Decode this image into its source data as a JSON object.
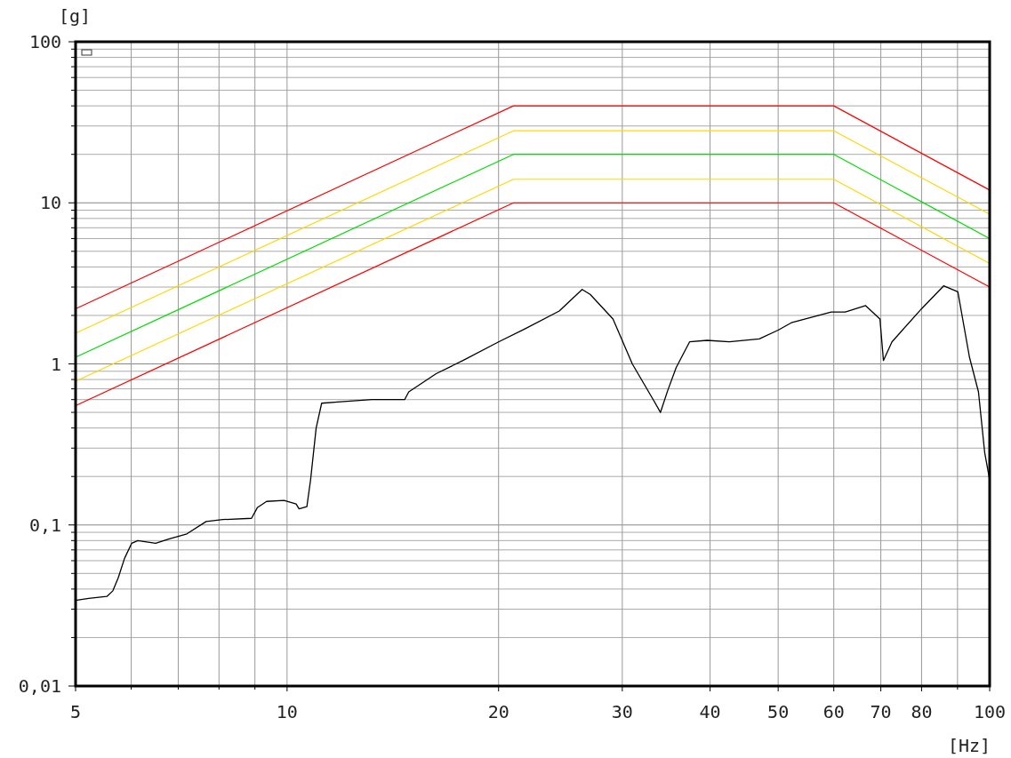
{
  "chart_data": {
    "type": "line",
    "xlabel": "[Hz]",
    "ylabel": "[g]",
    "log": "xy",
    "grid": true,
    "line_style": "solid",
    "xlim": [
      5,
      100
    ],
    "ylim": [
      0.01,
      100
    ],
    "xticks": [
      5,
      {
        "value": 6,
        "label": null
      },
      {
        "value": 7,
        "label": null
      },
      {
        "value": 8,
        "label": null
      },
      {
        "value": 9,
        "label": null
      },
      10,
      20,
      30,
      40,
      50,
      60,
      70,
      80,
      {
        "value": 90,
        "label": null
      },
      100
    ],
    "yticks": [
      {
        "value": 0.01,
        "label": "0,01"
      },
      {
        "value": 0.02,
        "label": null
      },
      {
        "value": 0.03,
        "label": null
      },
      {
        "value": 0.04,
        "label": null
      },
      {
        "value": 0.05,
        "label": null
      },
      {
        "value": 0.06,
        "label": null
      },
      {
        "value": 0.07,
        "label": null
      },
      {
        "value": 0.08,
        "label": null
      },
      {
        "value": 0.09,
        "label": null
      },
      {
        "value": 0.1,
        "label": "0,1"
      },
      {
        "value": 0.2,
        "label": null
      },
      {
        "value": 0.3,
        "label": null
      },
      {
        "value": 0.4,
        "label": null
      },
      {
        "value": 0.5,
        "label": null
      },
      {
        "value": 0.6,
        "label": null
      },
      {
        "value": 0.7,
        "label": null
      },
      {
        "value": 0.8,
        "label": null
      },
      {
        "value": 0.9,
        "label": null
      },
      1,
      {
        "value": 2,
        "label": null
      },
      {
        "value": 3,
        "label": null
      },
      {
        "value": 4,
        "label": null
      },
      {
        "value": 5,
        "label": null
      },
      {
        "value": 6,
        "label": null
      },
      {
        "value": 7,
        "label": null
      },
      {
        "value": 8,
        "label": null
      },
      {
        "value": 9,
        "label": null
      },
      10,
      {
        "value": 20,
        "label": null
      },
      {
        "value": 30,
        "label": null
      },
      {
        "value": 40,
        "label": null
      },
      {
        "value": 50,
        "label": null
      },
      {
        "value": 60,
        "label": null
      },
      {
        "value": 70,
        "label": null
      },
      {
        "value": 80,
        "label": null
      },
      {
        "value": 90,
        "label": null
      },
      100
    ],
    "series": [
      {
        "color": "#ff0000",
        "x": [
          5,
          21,
          60,
          100
        ],
        "values": [
          2.2,
          40,
          40,
          12
        ]
      },
      {
        "color": "#ffd700",
        "x": [
          5,
          21,
          60,
          100
        ],
        "values": [
          1.55,
          28,
          28,
          8.5
        ]
      },
      {
        "color": "#00dd00",
        "x": [
          5,
          21,
          60,
          100
        ],
        "values": [
          1.1,
          20,
          20,
          6
        ]
      },
      {
        "color": "#ffd700",
        "x": [
          5,
          21,
          60,
          100
        ],
        "values": [
          0.78,
          14,
          14,
          4.2
        ]
      },
      {
        "color": "#ff0000",
        "x": [
          5,
          21,
          60,
          100
        ],
        "values": [
          0.55,
          10,
          10,
          3
        ]
      },
      {
        "color": "#000000",
        "x": [
          5,
          5.22,
          5.54,
          5.65,
          5.75,
          5.87,
          6.01,
          6.13,
          6.5,
          6.8,
          7.2,
          7.67,
          8.1,
          8.9,
          9.07,
          9.35,
          9.9,
          10.3,
          10.4,
          10.67,
          10.8,
          11,
          11.2,
          11.8,
          13.2,
          14.7,
          14.9,
          16.3,
          17.8,
          20,
          21.8,
          24.4,
          26.3,
          27,
          29.1,
          31,
          33.2,
          34,
          34.8,
          35.8,
          37.4,
          39.6,
          42.6,
          47,
          50,
          52.2,
          59.5,
          62.3,
          66.6,
          69.8,
          70.6,
          72.6,
          80,
          86,
          90.1,
          93.6,
          96.4,
          98.4,
          100
        ],
        "values": [
          0.034,
          0.035,
          0.036,
          0.039,
          0.047,
          0.062,
          0.077,
          0.08,
          0.077,
          0.082,
          0.088,
          0.105,
          0.108,
          0.11,
          0.128,
          0.14,
          0.142,
          0.135,
          0.126,
          0.13,
          0.19,
          0.4,
          0.57,
          0.58,
          0.6,
          0.6,
          0.67,
          0.87,
          1.05,
          1.37,
          1.65,
          2.13,
          2.9,
          2.7,
          1.9,
          1,
          0.6,
          0.5,
          0.68,
          0.95,
          1.37,
          1.4,
          1.37,
          1.43,
          1.62,
          1.8,
          2.1,
          2.1,
          2.3,
          1.9,
          1.05,
          1.37,
          2.2,
          3.05,
          2.8,
          1.1,
          0.67,
          0.28,
          0.19
        ]
      }
    ]
  }
}
